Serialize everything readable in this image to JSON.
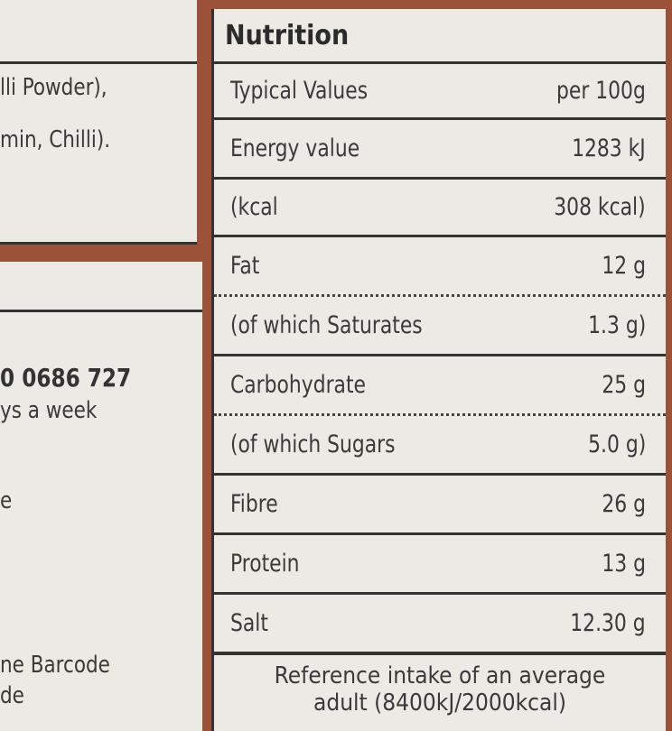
{
  "left_panel": {
    "ingredients_lines": [
      "lli Powder),",
      "min, Chilli)."
    ],
    "contact_lines": [
      "0 0686 727",
      "ys a week",
      "e",
      "ne Barcode",
      "de"
    ]
  },
  "nutrition": {
    "title": "Nutrition",
    "rows": [
      {
        "label": "Typical Values",
        "value": "per 100g"
      },
      {
        "label": "Energy value",
        "value": "1283 kJ"
      },
      {
        "label": "(kcal",
        "value": "308 kcal)"
      },
      {
        "label": "Fat",
        "value": "12 g"
      },
      {
        "label": "(of which Saturates",
        "value": "1.3 g)"
      },
      {
        "label": "Carbohydrate",
        "value": "25 g"
      },
      {
        "label": "(of which Sugars",
        "value": "5.0 g)"
      },
      {
        "label": "Fibre",
        "value": "26 g"
      },
      {
        "label": "Protein",
        "value": "13 g"
      },
      {
        "label": "Salt",
        "value": "12.30 g"
      }
    ],
    "reference_line1": "Reference intake of an average",
    "reference_line2": "adult (8400kJ/2000kcal)"
  },
  "colors": {
    "background": "#9c5238",
    "panel": "#ebeae5",
    "rule": "#333333"
  }
}
